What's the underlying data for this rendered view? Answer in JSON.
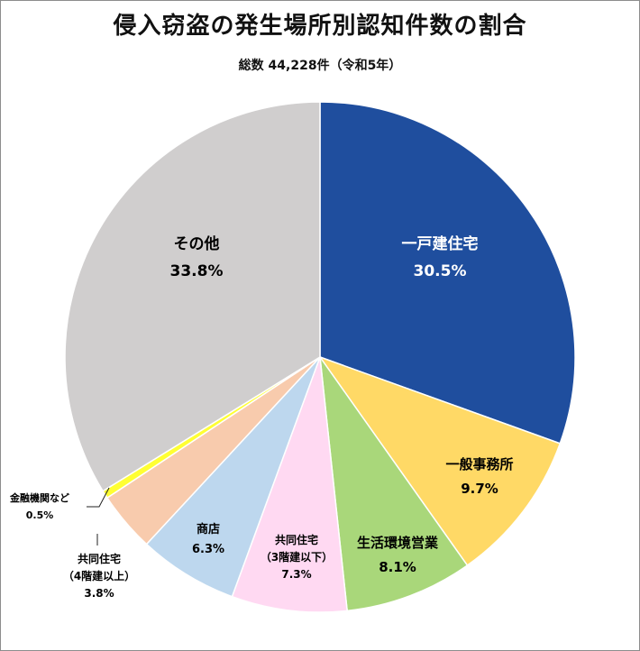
{
  "chart_data": {
    "type": "pie",
    "title": "侵入窃盗の発生場所別認知件数の割合",
    "subtitle": "総数 44,228件（令和5年）",
    "start": "12 o'clock",
    "direction": "clockwise",
    "slices": [
      {
        "label": "一戸建住宅",
        "value_text": "30.5%",
        "value": 30.5,
        "color": "#1f4e9e",
        "text_color": "#ffffff"
      },
      {
        "label": "一般事務所",
        "value_text": "9.7%",
        "value": 9.7,
        "color": "#ffd966",
        "text_color": "#000000"
      },
      {
        "label": "生活環境営業",
        "value_text": "8.1%",
        "value": 8.1,
        "color": "#a9d77a",
        "text_color": "#000000"
      },
      {
        "label": "共同住宅",
        "label2": "（3階建以下）",
        "value_text": "7.3%",
        "value": 7.3,
        "color": "#ffd9f2",
        "text_color": "#000000"
      },
      {
        "label": "商店",
        "value_text": "6.3%",
        "value": 6.3,
        "color": "#bdd7ee",
        "text_color": "#000000"
      },
      {
        "label": "共同住宅",
        "label2": "（4階建以上）",
        "value_text": "3.8%",
        "value": 3.8,
        "color": "#f8cbad",
        "text_color": "#000000"
      },
      {
        "label": "金融機関など",
        "value_text": "0.5%",
        "value": 0.5,
        "color": "#ffff33",
        "text_color": "#000000"
      },
      {
        "label": "その他",
        "value_text": "33.8%",
        "value": 33.8,
        "color": "#d0cece",
        "text_color": "#000000"
      }
    ]
  }
}
